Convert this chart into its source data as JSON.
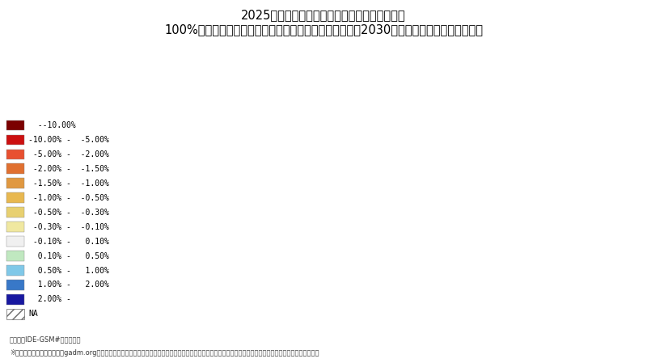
{
  "title_line1": "2025年以降、西側陣営と東側陣営の間の貿易に",
  "title_line2": "100%の非関税障壁が追加的に課される「最悪ケース」（2030年、ベースラインとの比較）",
  "footnote1": "（出所）IDE-GSM#による試算",
  "footnote2": "※地図上に示された境界線はgadm.orgの見解に基づき、アジア経済研究所およびジェトロによる主権の帰属についての支持や判断を意味するものではありません",
  "legend_labels": [
    "  --10.00%",
    "-10.00% -  -5.00%",
    " -5.00% -  -2.00%",
    " -2.00% -  -1.50%",
    " -1.50% -  -1.00%",
    " -1.00% -  -0.50%",
    " -0.50% -  -0.30%",
    " -0.30% -  -0.10%",
    " -0.10% -   0.10%",
    "  0.10% -   0.50%",
    "  0.50% -   1.00%",
    "  1.00% -   2.00%",
    "  2.00% -",
    "NA"
  ],
  "legend_colors": [
    "#7B0000",
    "#CC1010",
    "#E85030",
    "#E07030",
    "#E09840",
    "#E8B850",
    "#E8D070",
    "#F0E8A0",
    "#F0F0F0",
    "#C0E8C0",
    "#80C8E8",
    "#3878C8",
    "#1818A0",
    "hatch"
  ],
  "background_color": "#FFFFFF",
  "ocean_color": "#C8D8F0",
  "border_color": "#FFFFFF",
  "title_fontsize": 10.5,
  "legend_fontsize": 7,
  "footnote_fontsize": 6
}
